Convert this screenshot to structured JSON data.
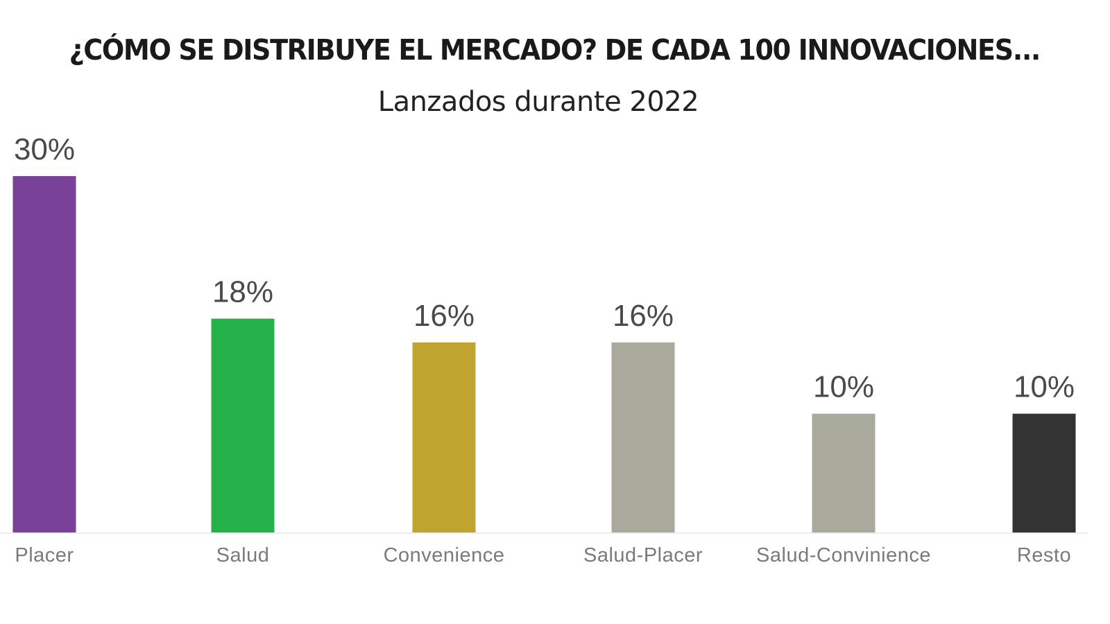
{
  "chart_data": {
    "type": "bar",
    "title": "¿CÓMO SE DISTRIBUYE EL MERCADO? DE CADA 100 INNOVACIONES...",
    "subtitle": "Lanzados durante 2022",
    "xlabel": "",
    "ylabel": "",
    "ylim": [
      0,
      30
    ],
    "grid": false,
    "categories": [
      "Placer",
      "Salud",
      "Convenience",
      "Salud-Placer",
      "Salud-Convinience",
      "Resto"
    ],
    "values": [
      30,
      18,
      16,
      16,
      10,
      10
    ],
    "data_labels": [
      "30%",
      "18%",
      "16%",
      "16%",
      "10%",
      "10%"
    ],
    "colors": [
      "#7a4199",
      "#25b24b",
      "#c0a430",
      "#a9aa9c",
      "#a9aa9c",
      "#333333"
    ]
  }
}
